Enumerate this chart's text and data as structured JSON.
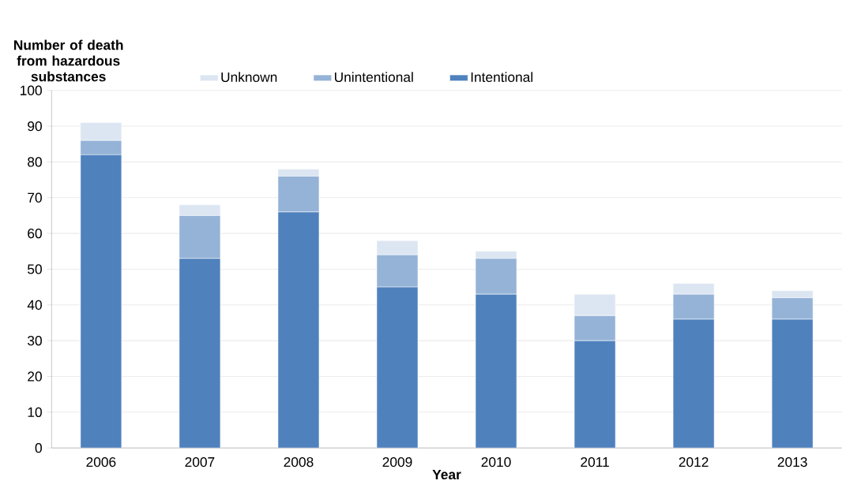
{
  "chart_data": {
    "type": "bar",
    "stacked": true,
    "xlabel": "Year",
    "ylabel": "Number of death from hazardous substances",
    "categories": [
      "2006",
      "2007",
      "2008",
      "2009",
      "2010",
      "2011",
      "2012",
      "2013"
    ],
    "series": [
      {
        "name": "Intentional",
        "color": "#4f81bd",
        "values": [
          82,
          53,
          66,
          45,
          43,
          30,
          36,
          36
        ]
      },
      {
        "name": "Unintentional",
        "color": "#95b3d7",
        "values": [
          4,
          12,
          10,
          9,
          10,
          7,
          7,
          6
        ]
      },
      {
        "name": "Unknown",
        "color": "#dce6f2",
        "values": [
          5,
          3,
          2,
          4,
          2,
          6,
          3,
          2
        ]
      }
    ],
    "ylim": [
      0,
      100
    ],
    "yticks": [
      0,
      10,
      20,
      30,
      40,
      50,
      60,
      70,
      80,
      90,
      100
    ],
    "grid": "y",
    "legend": "top"
  }
}
